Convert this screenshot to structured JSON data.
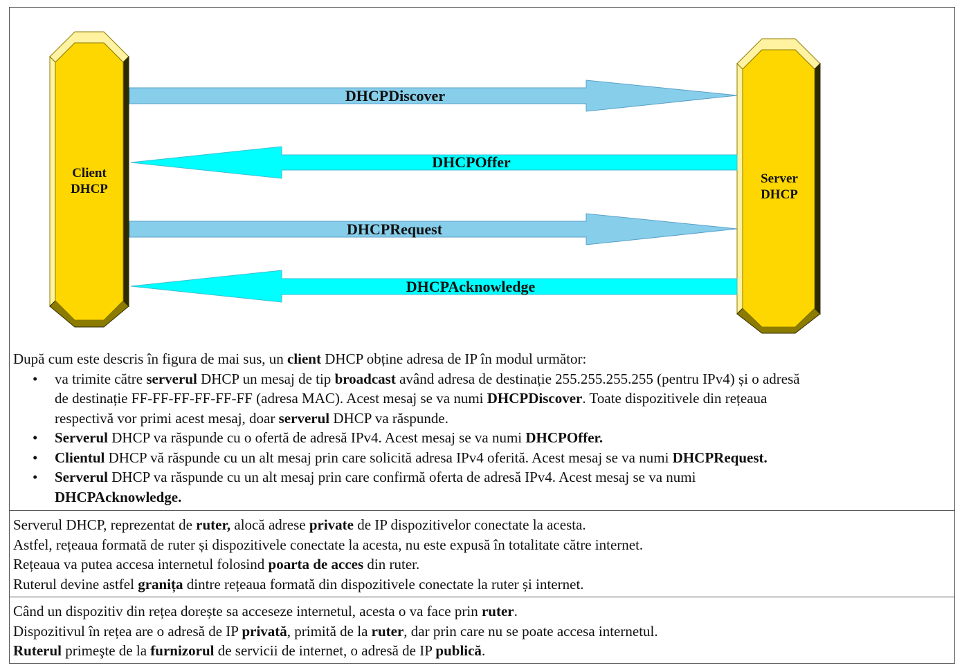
{
  "diagram": {
    "client": {
      "line1": "Client",
      "line2": "DHCP"
    },
    "server": {
      "line1": "Server",
      "line2": "DHCP"
    },
    "messages": [
      {
        "label": "DHCPDiscover",
        "direction": "client-to-server",
        "color": "#87CEEB"
      },
      {
        "label": "DHCPOffer",
        "direction": "server-to-client",
        "color": "#00FFFF"
      },
      {
        "label": "DHCPRequest",
        "direction": "client-to-server",
        "color": "#87CEEB"
      },
      {
        "label": "DHCPAcknowledge",
        "direction": "server-to-client",
        "color": "#00FFFF"
      }
    ],
    "colors": {
      "node_fill": "#FFD700",
      "node_bevel_light": "#FFF2A0",
      "node_bevel_dark": "#8B7B00",
      "node_shadow": "#2E2A00"
    }
  },
  "section1": {
    "intro": {
      "t1": "După cum este descris în figura de mai sus, un ",
      "b1": "client",
      "t2": " DHCP obține adresa de IP în modul următor:"
    },
    "bullet_glyph": "•",
    "b1": {
      "l1_t1": "va trimite către ",
      "l1_b1": "serverul",
      "l1_t2": " DHCP un mesaj de tip ",
      "l1_b2": "broadcast",
      "l1_t3": " având adresa de destinație 255.255.255.255 (pentru IPv4) și o adresă",
      "l2_t1": "de destinație FF-FF-FF-FF-FF-FF (adresa MAC).  Acest mesaj se va numi ",
      "l2_b1": "DHCPDiscover",
      "l2_t2": ". Toate dispozitivele din rețeaua",
      "l3_t1": "respectivă vor primi acest mesaj, doar ",
      "l3_b1": "serverul",
      "l3_t2": " DHCP va răspunde."
    },
    "b2": {
      "b1": "Serverul",
      "t1": " DHCP va răspunde cu o ofertă de adresă IPv4.  Acest mesaj se va numi ",
      "b2": "DHCPOffer."
    },
    "b3": {
      "b1": "Clientul",
      "t1": " DHCP vă răspunde cu un alt mesaj prin care solicită adresa IPv4 oferită. Acest mesaj se va numi ",
      "b2": "DHCPRequest."
    },
    "b4": {
      "b1": "Serverul",
      "t1": " DHCP va răspunde cu un alt mesaj prin care confirmă oferta de adresă IPv4. Acest mesaj se va numi",
      "b2": "DHCPAcknowledge."
    }
  },
  "section2": {
    "l1": {
      "t1": "Serverul DHCP, reprezentat de ",
      "b1": "ruter,",
      "t2": " alocă adrese ",
      "b2": "private",
      "t3": " de IP dispozitivelor conectate la acesta."
    },
    "l2": {
      "t1": "Astfel, rețeaua formată de ruter și dispozitivele conectate la acesta, nu este expusă în totalitate către internet."
    },
    "l3": {
      "t1": "Rețeaua va putea accesa internetul folosind ",
      "b1": "poarta de acces",
      "t2": " din ruter."
    },
    "l4": {
      "t1": "Ruterul devine astfel ",
      "b1": "granița",
      "t2": "  dintre rețeaua formată din dispozitivele conectate la ruter și internet."
    }
  },
  "section3": {
    "l1": {
      "t1": "Când un dispozitiv din rețea dorește sa acceseze internetul, acesta o va face prin ",
      "b1": "ruter",
      "t2": "."
    },
    "l2": {
      "t1": "Dispozitivul în rețea are o adresă de IP ",
      "b1": "privată",
      "t2": ", primită de la ",
      "b2": "ruter",
      "t3": ", dar prin care nu se poate accesa internetul."
    },
    "l3": {
      "b1": "Ruterul",
      "t1": " primeşte de la ",
      "b2": "furnizorul",
      "t2": " de servicii de internet, o adresă de IP ",
      "b3": "publică",
      "t3": "."
    }
  }
}
